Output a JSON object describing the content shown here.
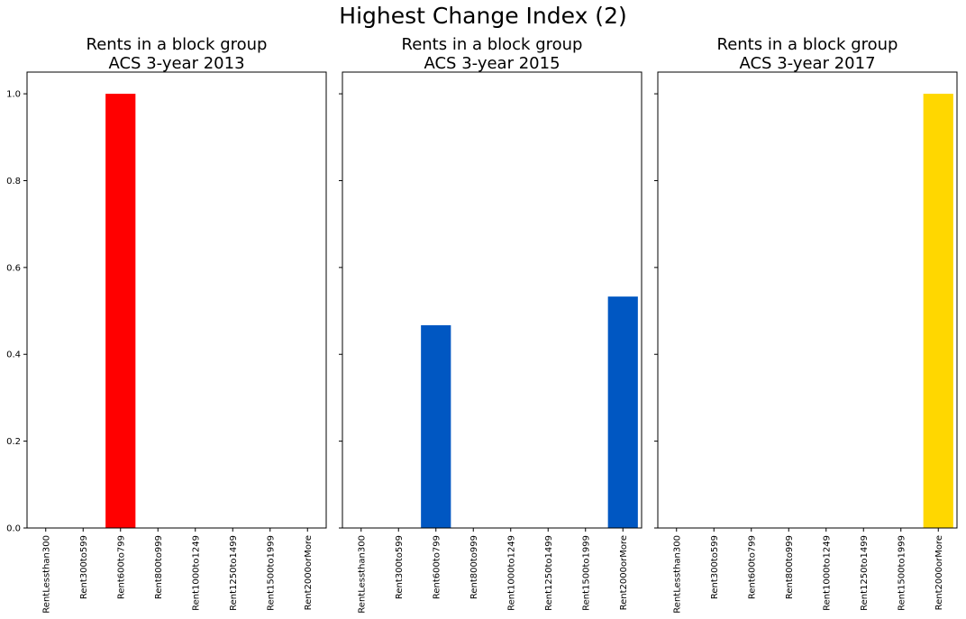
{
  "suptitle": "Highest Change Index (2)",
  "chart_data": [
    {
      "type": "bar",
      "title": [
        "Rents in a block group",
        "ACS 3-year 2013"
      ],
      "categories": [
        "RentLessthan300",
        "Rent300to599",
        "Rent600to799",
        "Rent800to999",
        "Rent1000to1249",
        "Rent1250to1499",
        "Rent1500to1999",
        "Rent2000orMore"
      ],
      "values": [
        0,
        0,
        1.0,
        0,
        0,
        0,
        0,
        0
      ],
      "color": "#ff0000",
      "ylim": [
        0,
        1.05
      ],
      "yticks": [
        "0.0",
        "0.2",
        "0.4",
        "0.6",
        "0.8",
        "1.0"
      ],
      "show_ytick_labels": true,
      "grid": false
    },
    {
      "type": "bar",
      "title": [
        "Rents in a block group",
        "ACS 3-year 2015"
      ],
      "categories": [
        "RentLessthan300",
        "Rent300to599",
        "Rent600to799",
        "Rent800to999",
        "Rent1000to1249",
        "Rent1250to1499",
        "Rent1500to1999",
        "Rent2000orMore"
      ],
      "values": [
        0,
        0,
        0.467,
        0,
        0,
        0,
        0,
        0.533
      ],
      "color": "#0057c2",
      "ylim": [
        0,
        1.05
      ],
      "yticks": [
        "0.0",
        "0.2",
        "0.4",
        "0.6",
        "0.8",
        "1.0"
      ],
      "show_ytick_labels": false,
      "grid": false
    },
    {
      "type": "bar",
      "title": [
        "Rents in a block group",
        "ACS 3-year 2017"
      ],
      "categories": [
        "RentLessthan300",
        "Rent300to599",
        "Rent600to799",
        "Rent800to999",
        "Rent1000to1249",
        "Rent1250to1499",
        "Rent1500to1999",
        "Rent2000orMore"
      ],
      "values": [
        0,
        0,
        0,
        0,
        0,
        0,
        0,
        1.0
      ],
      "color": "#ffd700",
      "ylim": [
        0,
        1.05
      ],
      "yticks": [
        "0.0",
        "0.2",
        "0.4",
        "0.6",
        "0.8",
        "1.0"
      ],
      "show_ytick_labels": false,
      "grid": false
    }
  ]
}
